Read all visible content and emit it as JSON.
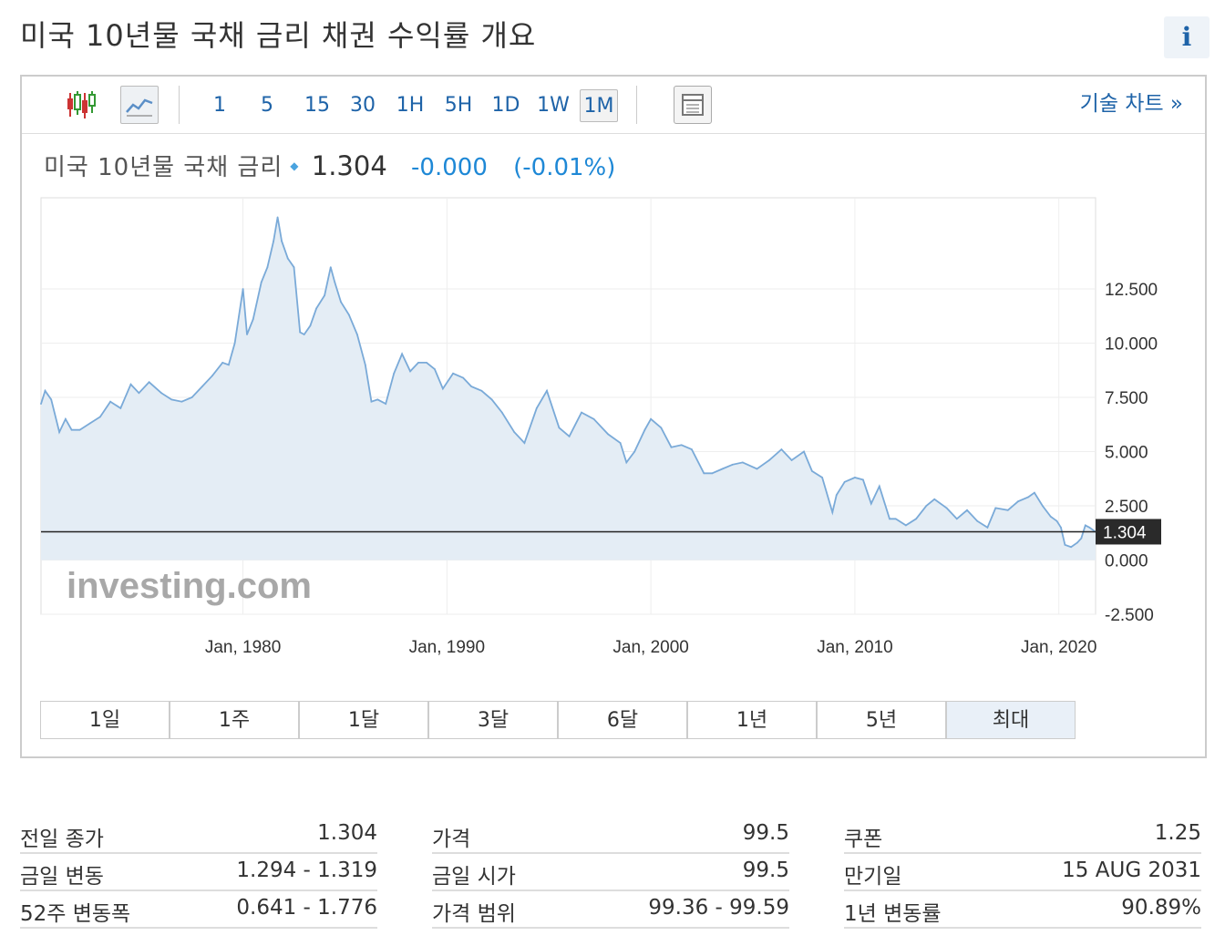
{
  "header": {
    "title": "미국 10년물 국채 금리  채권 수익률 개요",
    "info_icon": "i"
  },
  "toolbar": {
    "timeframes": [
      "1",
      "5",
      "15",
      "30",
      "1H",
      "5H",
      "1D",
      "1W",
      "1M"
    ],
    "active_timeframe": "1M",
    "tech_chart_label": "기술 차트 »",
    "icons": [
      "candlestick-icon",
      "line-chart-icon",
      "table-icon"
    ]
  },
  "quote": {
    "name": "미국 10년물 국채 금리",
    "price": "1.304",
    "change": "-0.000",
    "change_pct": "(-0.01%)"
  },
  "colors": {
    "accent": "#1e63a8",
    "change": "#1e88d6",
    "line": "#7aaad8",
    "area": "#e4edf5",
    "price_tag": "#2a2a2a"
  },
  "chart_data": {
    "type": "area",
    "x_tick_labels": [
      "Jan, 1980",
      "Jan, 1990",
      "Jan, 2000",
      "Jan, 2010",
      "Jan, 2020"
    ],
    "x_tick_values": [
      1980,
      1990,
      2000,
      2010,
      2020
    ],
    "y_tick_labels": [
      "12.500",
      "10.000",
      "7.500",
      "5.000",
      "2.500",
      "0.000",
      "-2.500"
    ],
    "y_tick_values": [
      12.5,
      10,
      7.5,
      5,
      2.5,
      0,
      -2.5
    ],
    "xlim": [
      1970.1,
      2021.8
    ],
    "ylim": [
      -2.5,
      16.7
    ],
    "current_value_label": "1.304",
    "current_value": 1.304,
    "watermark": "investing.com",
    "x": [
      1970.1,
      1970.3,
      1970.6,
      1971.0,
      1971.3,
      1971.6,
      1972.0,
      1972.5,
      1973.0,
      1973.5,
      1974.0,
      1974.5,
      1974.9,
      1975.4,
      1976.0,
      1976.5,
      1977.0,
      1977.5,
      1978.0,
      1978.5,
      1979.0,
      1979.3,
      1979.6,
      1980.0,
      1980.2,
      1980.5,
      1980.9,
      1981.2,
      1981.5,
      1981.7,
      1981.9,
      1982.2,
      1982.5,
      1982.8,
      1983.0,
      1983.3,
      1983.6,
      1984.0,
      1984.3,
      1984.5,
      1984.8,
      1985.2,
      1985.6,
      1986.0,
      1986.3,
      1986.6,
      1987.0,
      1987.4,
      1987.8,
      1988.2,
      1988.6,
      1989.0,
      1989.4,
      1989.8,
      1990.3,
      1990.8,
      1991.2,
      1991.7,
      1992.2,
      1992.7,
      1993.3,
      1993.8,
      1994.4,
      1994.9,
      1995.5,
      1996.0,
      1996.6,
      1997.2,
      1997.9,
      1998.5,
      1998.8,
      1999.2,
      1999.7,
      2000.0,
      2000.5,
      2001.0,
      2001.5,
      2002.0,
      2002.6,
      2003.0,
      2003.5,
      2004.0,
      2004.5,
      2005.2,
      2005.8,
      2006.4,
      2006.9,
      2007.5,
      2007.9,
      2008.4,
      2008.9,
      2009.1,
      2009.5,
      2010.0,
      2010.4,
      2010.8,
      2011.2,
      2011.7,
      2012.0,
      2012.5,
      2013.0,
      2013.5,
      2013.9,
      2014.5,
      2015.0,
      2015.5,
      2016.0,
      2016.5,
      2016.9,
      2017.5,
      2018.0,
      2018.5,
      2018.8,
      2019.2,
      2019.6,
      2019.9,
      2020.1,
      2020.3,
      2020.6,
      2020.9,
      2021.1,
      2021.3,
      2021.5,
      2021.8
    ],
    "values": [
      7.2,
      7.8,
      7.4,
      5.9,
      6.5,
      6.0,
      6.0,
      6.3,
      6.6,
      7.3,
      7.0,
      8.1,
      7.7,
      8.2,
      7.7,
      7.4,
      7.3,
      7.5,
      8.0,
      8.5,
      9.1,
      9.0,
      10.0,
      12.5,
      10.4,
      11.1,
      12.8,
      13.5,
      14.7,
      15.8,
      14.7,
      13.9,
      13.5,
      10.5,
      10.4,
      10.8,
      11.6,
      12.2,
      13.5,
      12.8,
      11.9,
      11.3,
      10.4,
      9.0,
      7.3,
      7.4,
      7.2,
      8.6,
      9.5,
      8.7,
      9.1,
      9.1,
      8.8,
      7.9,
      8.6,
      8.4,
      8.0,
      7.8,
      7.4,
      6.8,
      5.9,
      5.4,
      7.0,
      7.8,
      6.1,
      5.7,
      6.8,
      6.5,
      5.8,
      5.4,
      4.5,
      5.0,
      6.0,
      6.5,
      6.1,
      5.2,
      5.3,
      5.1,
      4.0,
      4.0,
      4.2,
      4.4,
      4.5,
      4.2,
      4.6,
      5.1,
      4.6,
      5.0,
      4.1,
      3.8,
      2.2,
      3.0,
      3.6,
      3.8,
      3.7,
      2.6,
      3.4,
      1.9,
      1.9,
      1.6,
      1.9,
      2.5,
      2.8,
      2.4,
      1.9,
      2.3,
      1.8,
      1.5,
      2.4,
      2.3,
      2.7,
      2.9,
      3.1,
      2.5,
      2.0,
      1.8,
      1.5,
      0.7,
      0.6,
      0.8,
      1.0,
      1.6,
      1.5,
      1.3
    ]
  },
  "ranges": [
    "1일",
    "1주",
    "1달",
    "3달",
    "6달",
    "1년",
    "5년",
    "최대"
  ],
  "active_range": "최대",
  "stats": [
    [
      {
        "label": "전일 종가",
        "value": "1.304"
      },
      {
        "label": "금일 변동",
        "value": "1.294 - 1.319"
      },
      {
        "label": "52주 변동폭",
        "value": "0.641 - 1.776"
      }
    ],
    [
      {
        "label": "가격",
        "value": "99.5"
      },
      {
        "label": "금일 시가",
        "value": "99.5"
      },
      {
        "label": "가격 범위",
        "value": "99.36 - 99.59"
      }
    ],
    [
      {
        "label": "쿠폰",
        "value": "1.25"
      },
      {
        "label": "만기일",
        "value": "15 AUG 2031"
      },
      {
        "label": "1년 변동률",
        "value": "90.89%"
      }
    ]
  ]
}
